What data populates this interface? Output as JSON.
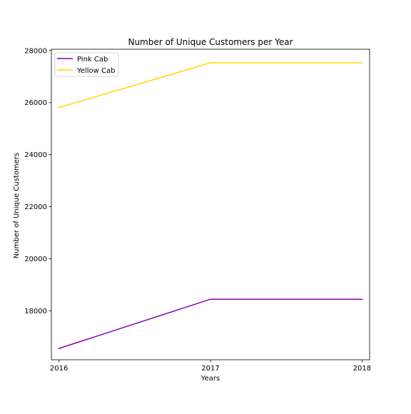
{
  "chart_data": {
    "type": "line",
    "title": "Number of Unique Customers per Year",
    "xlabel": "Years",
    "ylabel": "Number of Unique Customers",
    "x": [
      2016,
      2017,
      2018
    ],
    "x_tick_labels": [
      "2016",
      "2017",
      "2018"
    ],
    "y_ticks": [
      18000,
      20000,
      22000,
      24000,
      26000,
      28000
    ],
    "y_tick_labels": [
      "18000",
      "20000",
      "22000",
      "24000",
      "26000",
      "28000"
    ],
    "xlim": [
      2015.95,
      2018.05
    ],
    "ylim": [
      16120,
      28050
    ],
    "grid": false,
    "legend_position": "top-left",
    "series": [
      {
        "name": "Pink Cab",
        "color": "#8b00b0",
        "values": [
          16555,
          18446,
          18446
        ]
      },
      {
        "name": "Yellow Cab",
        "color": "#ffd700",
        "values": [
          25808,
          27530,
          27530
        ]
      }
    ]
  }
}
